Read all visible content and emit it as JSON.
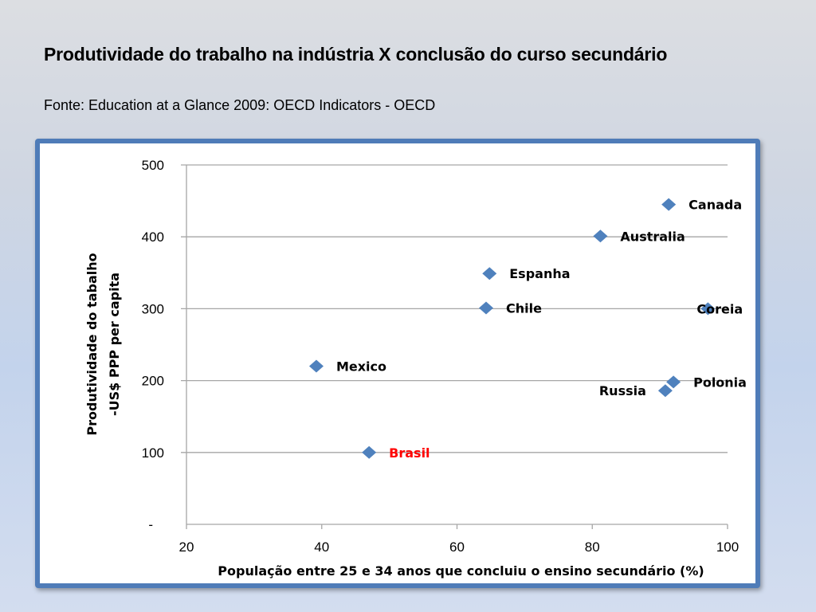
{
  "title": "Produtividade do trabalho na indústria X conclusão do curso secundário",
  "source": "Fonte: Education at a Glance 2009: OECD Indicators - OECD",
  "chart_data": {
    "type": "scatter",
    "xlabel": "População entre 25 e 34 anos que concluiu o ensino secundário (%)",
    "ylabel": [
      "Produtividade do tabalho",
      "-US$ PPP per capita"
    ],
    "xlim": [
      20,
      100
    ],
    "ylim": [
      0,
      500
    ],
    "x_ticks": [
      20,
      40,
      60,
      80,
      100
    ],
    "y_ticks": [
      {
        "value": 0,
        "label": "-"
      },
      {
        "value": 100,
        "label": "100"
      },
      {
        "value": 200,
        "label": "200"
      },
      {
        "value": 300,
        "label": "300"
      },
      {
        "value": 400,
        "label": "400"
      },
      {
        "value": 500,
        "label": "500"
      }
    ],
    "grid": "horizontal",
    "marker_color": "#4f81bd",
    "points": [
      {
        "name": "Canada",
        "x": 91.3,
        "y": 445
      },
      {
        "name": "Australia",
        "x": 81.2,
        "y": 401
      },
      {
        "name": "Espanha",
        "x": 64.8,
        "y": 349
      },
      {
        "name": "Chile",
        "x": 64.3,
        "y": 301
      },
      {
        "name": "Coreia",
        "x": 97.1,
        "y": 300
      },
      {
        "name": "Mexico",
        "x": 39.2,
        "y": 220
      },
      {
        "name": "Polonia",
        "x": 92.0,
        "y": 198
      },
      {
        "name": "Russia",
        "x": 90.8,
        "y": 186
      },
      {
        "name": "Brasil",
        "x": 47.0,
        "y": 100,
        "label_color": "#ff0000"
      }
    ]
  }
}
